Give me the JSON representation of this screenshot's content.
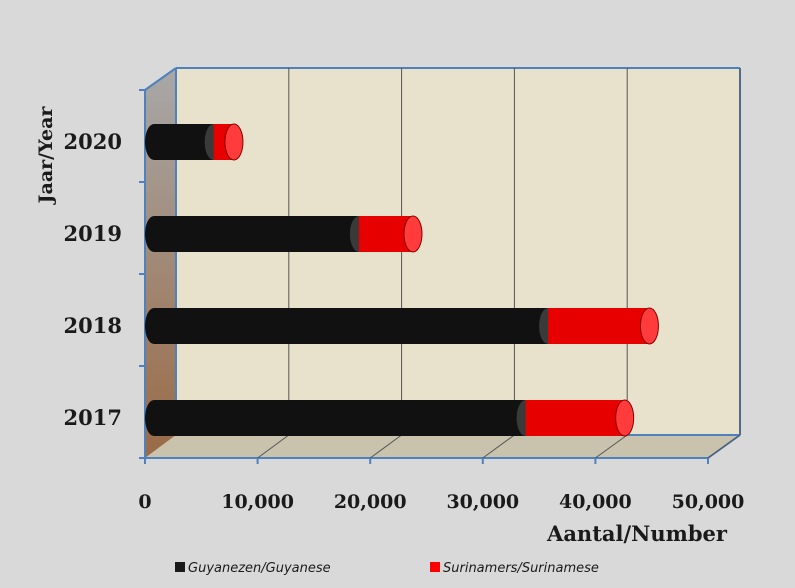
{
  "chart_data": {
    "type": "bar",
    "orientation": "horizontal",
    "stacked": true,
    "style": "3d-cylinder",
    "title": "",
    "xlabel": "Aantal/Number",
    "ylabel": "Jaar/Year",
    "categories": [
      "2017",
      "2018",
      "2019",
      "2020"
    ],
    "xlim": [
      0,
      50000
    ],
    "xticks": [
      "0",
      "10,000",
      "20,000",
      "30,000",
      "40,000",
      "50,000"
    ],
    "grid": true,
    "legend": "bottom",
    "series": [
      {
        "name": "Guyanezen/Guyanese",
        "color": "#1a1a1a",
        "values": [
          33000,
          35000,
          18200,
          5300
        ]
      },
      {
        "name": "Surinamers/Surinamese",
        "color": "#ff0000",
        "values": [
          8800,
          9000,
          4800,
          1800
        ]
      }
    ]
  },
  "colors": {
    "page_background": "#d9d9d9",
    "plot_back_wall": "#e8e2cc",
    "plot_floor": "#c9c3ae",
    "plot_side_wall": "#a0856a",
    "gridline": "#555555",
    "frame_line": "#4f81bd"
  }
}
